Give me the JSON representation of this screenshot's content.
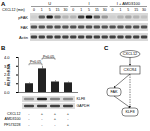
{
  "chart_data": {
    "type": "bar",
    "y_label": "KLF8 mRNA",
    "categories": [
      null,
      null,
      null,
      null
    ],
    "values": [
      1,
      2.7,
      1.2,
      1.1
    ],
    "errors": [
      0.1,
      0.3,
      0.15,
      0.1
    ],
    "color": "#222222",
    "ylim": [
      0,
      4
    ],
    "yticks": [
      0,
      1,
      2,
      3,
      4
    ],
    "annotations": [
      "P<0.05",
      "P<0.05"
    ],
    "tick_labels": "y"
  },
  "panel_a": {
    "label": "A",
    "treatment_label": "CXCL12 (min)",
    "groups": [
      "U",
      "I",
      "I + AMD3100"
    ],
    "time_points": [
      0,
      1,
      5,
      15,
      30
    ],
    "rows": [
      "pFAK",
      "FAK",
      "Actin"
    ]
  },
  "panel_b": {
    "label": "B",
    "blot_rows": [
      "KLF8",
      "GAPDH"
    ],
    "treatments": [
      {
        "name": "CXCL12",
        "marks": [
          "-",
          "+",
          "+",
          "+"
        ]
      },
      {
        "name": "AMD3100",
        "marks": [
          "-",
          "-",
          "+",
          "-"
        ]
      },
      {
        "name": "PF573228",
        "marks": [
          "-",
          "-",
          "-",
          "+"
        ]
      }
    ]
  },
  "panel_c": {
    "label": "C",
    "nodes": [
      "CXCL12",
      "CXCR4",
      "FAK",
      "KLF8"
    ]
  }
}
